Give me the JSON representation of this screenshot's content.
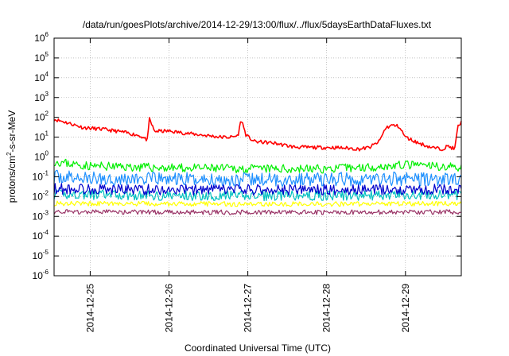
{
  "chart_data": {
    "type": "line",
    "title": "/data/run/goesPlots/archive/2014-12-29/13:00/flux/../flux/5daysEarthDataFluxes.txt",
    "xlabel": "Coordinated Universal Time (UTC)",
    "ylabel": "protons/cm2-s-sr-MeV",
    "ylabel_parts": {
      "base": "protons/cm",
      "sup": "2",
      "rest": "-s-sr-MeV"
    },
    "yscale": "log",
    "ylim": [
      1e-06,
      1000000
    ],
    "yticks": [
      {
        "value": 1e-06,
        "base": "10",
        "exp": "-6"
      },
      {
        "value": 1e-05,
        "base": "10",
        "exp": "-5"
      },
      {
        "value": 0.0001,
        "base": "10",
        "exp": "-4"
      },
      {
        "value": 0.001,
        "base": "10",
        "exp": "-3"
      },
      {
        "value": 0.01,
        "base": "10",
        "exp": "-2"
      },
      {
        "value": 0.1,
        "base": "10",
        "exp": "-1"
      },
      {
        "value": 1,
        "base": "10",
        "exp": "0"
      },
      {
        "value": 10,
        "base": "10",
        "exp": "1"
      },
      {
        "value": 100,
        "base": "10",
        "exp": "2"
      },
      {
        "value": 1000,
        "base": "10",
        "exp": "3"
      },
      {
        "value": 10000,
        "base": "10",
        "exp": "4"
      },
      {
        "value": 100000,
        "base": "10",
        "exp": "5"
      },
      {
        "value": 1000000,
        "base": "10",
        "exp": "6"
      }
    ],
    "xlim": [
      "2014-12-24T13:00",
      "2014-12-29T17:00"
    ],
    "xticks": [
      {
        "value": "2014-12-25T00:00",
        "label": "2014-12-25"
      },
      {
        "value": "2014-12-26T00:00",
        "label": "2014-12-26"
      },
      {
        "value": "2014-12-27T00:00",
        "label": "2014-12-27"
      },
      {
        "value": "2014-12-28T00:00",
        "label": "2014-12-28"
      },
      {
        "value": "2014-12-29T00:00",
        "label": "2014-12-29"
      }
    ],
    "grid": true,
    "series": [
      {
        "color": "#ff0000",
        "noise": 0.09,
        "seed": 11,
        "x": [
          "2014-12-24T13:00",
          "2014-12-24T16:00",
          "2014-12-24T22:00",
          "2014-12-25T04:00",
          "2014-12-25T10:00",
          "2014-12-25T15:00",
          "2014-12-25T17:30",
          "2014-12-25T18:00",
          "2014-12-25T19:30",
          "2014-12-26T00:00",
          "2014-12-26T08:00",
          "2014-12-26T16:00",
          "2014-12-26T19:00",
          "2014-12-26T21:00",
          "2014-12-26T22:00",
          "2014-12-26T23:30",
          "2014-12-27T02:00",
          "2014-12-27T08:00",
          "2014-12-27T14:00",
          "2014-12-27T20:00",
          "2014-12-28T02:00",
          "2014-12-28T06:00",
          "2014-12-28T10:00",
          "2014-12-28T13:00",
          "2014-12-28T16:00",
          "2014-12-28T18:00",
          "2014-12-28T20:00",
          "2014-12-28T22:00",
          "2014-12-29T00:00",
          "2014-12-29T04:00",
          "2014-12-29T08:00",
          "2014-12-29T11:00",
          "2014-12-29T13:00",
          "2014-12-29T15:00",
          "2014-12-29T16:00",
          "2014-12-29T17:00"
        ],
        "values": [
          80,
          60,
          30,
          25,
          18,
          12,
          7,
          90,
          20,
          20,
          14,
          10,
          10,
          12,
          80,
          12,
          6,
          5,
          3.2,
          3,
          3,
          2.8,
          2.5,
          3,
          6,
          30,
          40,
          35,
          10,
          5,
          3,
          2.5,
          3.5,
          2.5,
          35,
          55
        ]
      },
      {
        "color": "#00ee00",
        "noise": 0.22,
        "seed": 23,
        "x": [
          "2014-12-24T13:00",
          "2014-12-24T18:00",
          "2014-12-25T00:00",
          "2014-12-26T00:00",
          "2014-12-27T00:00",
          "2014-12-28T00:00",
          "2014-12-28T20:00",
          "2014-12-29T00:00",
          "2014-12-29T17:00"
        ],
        "values": [
          0.6,
          0.45,
          0.35,
          0.28,
          0.25,
          0.25,
          0.35,
          0.4,
          0.3
        ]
      },
      {
        "color": "#1e90ff",
        "noise": 0.35,
        "seed": 37,
        "x": [
          "2014-12-24T13:00",
          "2014-12-25T00:00",
          "2014-12-27T00:00",
          "2014-12-29T00:00",
          "2014-12-29T17:00"
        ],
        "values": [
          0.1,
          0.08,
          0.07,
          0.08,
          0.07
        ]
      },
      {
        "color": "#00c0c0",
        "noise": 0.25,
        "seed": 41,
        "x": [
          "2014-12-24T13:00",
          "2014-12-26T00:00",
          "2014-12-28T00:00",
          "2014-12-29T17:00"
        ],
        "values": [
          0.013,
          0.011,
          0.011,
          0.012
        ]
      },
      {
        "color": "#0000cc",
        "noise": 0.28,
        "seed": 53,
        "x": [
          "2014-12-24T13:00",
          "2014-12-26T00:00",
          "2014-12-28T00:00",
          "2014-12-29T17:00"
        ],
        "values": [
          0.025,
          0.022,
          0.022,
          0.023
        ]
      },
      {
        "color": "#ffff00",
        "noise": 0.12,
        "seed": 61,
        "x": [
          "2014-12-24T13:00",
          "2014-12-26T00:00",
          "2014-12-28T00:00",
          "2014-12-29T17:00"
        ],
        "values": [
          0.0045,
          0.0042,
          0.0042,
          0.0044
        ]
      },
      {
        "color": "#993366",
        "noise": 0.12,
        "seed": 71,
        "x": [
          "2014-12-24T13:00",
          "2014-12-26T00:00",
          "2014-12-28T00:00",
          "2014-12-29T17:00"
        ],
        "values": [
          0.0017,
          0.0016,
          0.0016,
          0.0017
        ]
      }
    ]
  }
}
